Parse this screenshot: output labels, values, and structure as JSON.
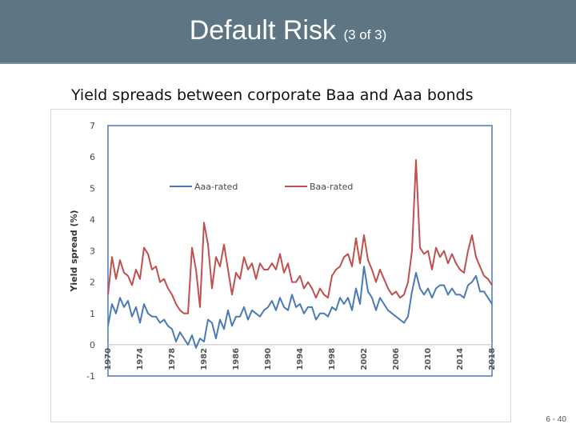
{
  "slide": {
    "title_main": "Default Risk",
    "title_sub": "(3 of 3)",
    "subtitle": "Yield spreads between corporate Baa and Aaa bonds",
    "page_number": "6 - 40"
  },
  "colors": {
    "header_bg": "#5e7584",
    "aaa": "#4a7ab8",
    "baa": "#c0504d",
    "frame": "#4a7ab8"
  },
  "chart_data": {
    "type": "line",
    "ylabel": "Yield spread (%)",
    "ylim": [
      -1,
      7
    ],
    "yticks": [
      "7",
      "6",
      "5",
      "4",
      "3",
      "2",
      "1",
      "0",
      "-1"
    ],
    "xlim": [
      1970,
      2018
    ],
    "xticks": [
      "1970",
      "1974",
      "1978",
      "1982",
      "1986",
      "1990",
      "1994",
      "1998",
      "2002",
      "2006",
      "2010",
      "2014",
      "2018"
    ],
    "legend": {
      "position": "top-left"
    },
    "series": [
      {
        "name": "Aaa-rated",
        "x": [
          1970,
          1970.5,
          1971,
          1971.5,
          1972,
          1972.5,
          1973,
          1973.5,
          1974,
          1974.5,
          1975,
          1975.5,
          1976,
          1976.5,
          1977,
          1977.5,
          1978,
          1978.5,
          1979,
          1979.5,
          1980,
          1980.5,
          1981,
          1981.5,
          1982,
          1982.5,
          1983,
          1983.5,
          1984,
          1984.5,
          1985,
          1985.5,
          1986,
          1986.5,
          1987,
          1987.5,
          1988,
          1988.5,
          1989,
          1989.5,
          1990,
          1990.5,
          1991,
          1991.5,
          1992,
          1992.5,
          1993,
          1993.5,
          1994,
          1994.5,
          1995,
          1995.5,
          1996,
          1996.5,
          1997,
          1997.5,
          1998,
          1998.5,
          1999,
          1999.5,
          2000,
          2000.5,
          2001,
          2001.5,
          2002,
          2002.5,
          2003,
          2003.5,
          2004,
          2004.5,
          2005,
          2005.5,
          2006,
          2006.5,
          2007,
          2007.5,
          2008,
          2008.5,
          2009,
          2009.5,
          2010,
          2010.5,
          2011,
          2011.5,
          2012,
          2012.5,
          2013,
          2013.5,
          2014,
          2014.5,
          2015,
          2015.5,
          2016,
          2016.5,
          2017,
          2017.5,
          2018
        ],
        "y": [
          0.6,
          1.3,
          1.0,
          1.5,
          1.2,
          1.4,
          0.9,
          1.2,
          0.7,
          1.3,
          1.0,
          0.9,
          0.9,
          0.7,
          0.8,
          0.6,
          0.5,
          0.1,
          0.4,
          0.2,
          0.0,
          0.3,
          -0.1,
          0.2,
          0.1,
          0.8,
          0.7,
          0.2,
          0.8,
          0.5,
          1.1,
          0.6,
          0.9,
          0.9,
          1.2,
          0.8,
          1.1,
          1.0,
          0.9,
          1.1,
          1.2,
          1.4,
          1.1,
          1.5,
          1.2,
          1.1,
          1.6,
          1.2,
          1.3,
          1.0,
          1.2,
          1.2,
          0.8,
          1.0,
          1.0,
          0.9,
          1.2,
          1.1,
          1.5,
          1.3,
          1.5,
          1.1,
          1.8,
          1.3,
          2.5,
          1.7,
          1.5,
          1.1,
          1.5,
          1.3,
          1.1,
          1.0,
          0.9,
          0.8,
          0.7,
          0.9,
          1.7,
          2.3,
          1.8,
          1.6,
          1.8,
          1.5,
          1.8,
          1.9,
          1.9,
          1.6,
          1.8,
          1.6,
          1.6,
          1.5,
          1.9,
          2.0,
          2.2,
          1.7,
          1.7,
          1.5,
          1.3
        ]
      },
      {
        "name": "Baa-rated",
        "x": [
          1970,
          1970.5,
          1971,
          1971.5,
          1972,
          1972.5,
          1973,
          1973.5,
          1974,
          1974.5,
          1975,
          1975.5,
          1976,
          1976.5,
          1977,
          1977.5,
          1978,
          1978.5,
          1979,
          1979.5,
          1980,
          1980.5,
          1981,
          1981.5,
          1982,
          1982.5,
          1983,
          1983.5,
          1984,
          1984.5,
          1985,
          1985.5,
          1986,
          1986.5,
          1987,
          1987.5,
          1988,
          1988.5,
          1989,
          1989.5,
          1990,
          1990.5,
          1991,
          1991.5,
          1992,
          1992.5,
          1993,
          1993.5,
          1994,
          1994.5,
          1995,
          1995.5,
          1996,
          1996.5,
          1997,
          1997.5,
          1998,
          1998.5,
          1999,
          1999.5,
          2000,
          2000.5,
          2001,
          2001.5,
          2002,
          2002.5,
          2003,
          2003.5,
          2004,
          2004.5,
          2005,
          2005.5,
          2006,
          2006.5,
          2007,
          2007.5,
          2008,
          2008.5,
          2009,
          2009.5,
          2010,
          2010.5,
          2011,
          2011.5,
          2012,
          2012.5,
          2013,
          2013.5,
          2014,
          2014.5,
          2015,
          2015.5,
          2016,
          2016.5,
          2017,
          2017.5,
          2018
        ],
        "y": [
          1.6,
          2.8,
          2.1,
          2.7,
          2.3,
          2.2,
          1.9,
          2.4,
          2.1,
          3.1,
          2.9,
          2.4,
          2.5,
          2.0,
          2.1,
          1.8,
          1.6,
          1.3,
          1.1,
          1.0,
          1.0,
          3.1,
          2.4,
          1.2,
          3.9,
          3.2,
          1.8,
          2.8,
          2.5,
          3.2,
          2.4,
          1.6,
          2.3,
          2.1,
          2.8,
          2.4,
          2.6,
          2.1,
          2.6,
          2.4,
          2.4,
          2.6,
          2.4,
          2.9,
          2.3,
          2.6,
          2.0,
          2.0,
          2.2,
          1.8,
          2.0,
          1.8,
          1.5,
          1.8,
          1.6,
          1.5,
          2.2,
          2.4,
          2.5,
          2.8,
          2.9,
          2.5,
          3.4,
          2.6,
          3.5,
          2.7,
          2.4,
          2.0,
          2.4,
          2.1,
          1.8,
          1.6,
          1.7,
          1.5,
          1.6,
          2.0,
          3.0,
          5.9,
          3.1,
          2.9,
          3.0,
          2.4,
          3.1,
          2.8,
          3.0,
          2.6,
          2.9,
          2.6,
          2.4,
          2.3,
          3.0,
          3.5,
          2.8,
          2.5,
          2.2,
          2.1,
          1.9
        ]
      }
    ]
  }
}
